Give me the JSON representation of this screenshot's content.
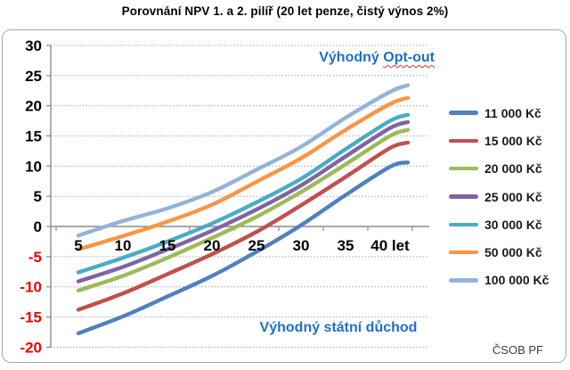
{
  "title": "Porovnání NPV 1. a 2. pilíř (20 let penze, čistý výnos 2%)",
  "annotations": {
    "top_prefix": "Výhodný ",
    "top_wavy": "Opt-out",
    "bottom": "Výhodný státní důchod"
  },
  "footer": "ČSOB PF",
  "colors": {
    "annotation_blue": "#1f6fc5",
    "axis_label_positive": "#000000",
    "axis_label_negative": "#ee0000",
    "grid_gray": "#9b9b9b",
    "axis_gray": "#8c8c8c",
    "frame_gray": "#a8a8a8"
  },
  "chart_data": {
    "type": "line",
    "title": "Porovnání NPV 1. a 2. pilíř (20 let penze, čistý výnos 2%)",
    "xlabel": "let",
    "ylabel": "",
    "x": [
      5,
      10,
      15,
      20,
      25,
      30,
      35,
      40,
      42
    ],
    "x_ticks": [
      {
        "t": 5,
        "label": "5"
      },
      {
        "t": 10,
        "label": "10"
      },
      {
        "t": 15,
        "label": "15"
      },
      {
        "t": 20,
        "label": "20"
      },
      {
        "t": 25,
        "label": "25"
      },
      {
        "t": 30,
        "label": "30"
      },
      {
        "t": 35,
        "label": "35"
      },
      {
        "t": 40,
        "label": "40 let"
      }
    ],
    "y_ticks": [
      30,
      25,
      20,
      15,
      10,
      5,
      0,
      -5,
      -10,
      -15,
      -20
    ],
    "ylim": [
      -20,
      30
    ],
    "xlim": [
      2,
      45
    ],
    "grid": "horizontal-dotted",
    "legend_position": "right",
    "series": [
      {
        "name": "11 000 Kč",
        "color": "#4f81bd",
        "values": [
          -17.7,
          -14.9,
          -11.6,
          -8.2,
          -4.2,
          0.2,
          5.2,
          9.9,
          10.6
        ]
      },
      {
        "name": "15 000 Kč",
        "color": "#c0504d",
        "values": [
          -13.8,
          -11.1,
          -7.9,
          -4.6,
          -0.9,
          3.5,
          8.2,
          13.0,
          13.9
        ]
      },
      {
        "name": "20 000 Kč",
        "color": "#9bbb59",
        "values": [
          -10.6,
          -8.2,
          -5.2,
          -1.9,
          1.6,
          5.7,
          10.3,
          15.0,
          16.0
        ]
      },
      {
        "name": "25 000 Kč",
        "color": "#8064a2",
        "values": [
          -9.1,
          -6.7,
          -3.8,
          -0.7,
          2.8,
          6.8,
          11.6,
          16.3,
          17.3
        ]
      },
      {
        "name": "30 000 Kč",
        "color": "#4bacc6",
        "values": [
          -7.6,
          -5.2,
          -2.5,
          0.5,
          4.0,
          7.9,
          12.8,
          17.5,
          18.5
        ]
      },
      {
        "name": "50 000 Kč",
        "color": "#f79646",
        "values": [
          -3.8,
          -1.6,
          0.8,
          3.6,
          7.4,
          11.3,
          16.0,
          20.3,
          21.3
        ]
      },
      {
        "name": "100 000 Kč",
        "color": "#95b3d7",
        "values": [
          -1.5,
          0.9,
          3.0,
          5.7,
          9.4,
          13.2,
          18.0,
          22.3,
          23.4
        ]
      }
    ]
  }
}
